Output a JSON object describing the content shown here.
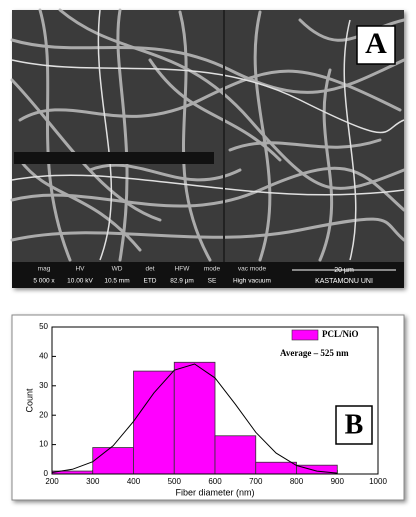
{
  "sem_panel": {
    "label": "A",
    "info_bar": [
      {
        "label": "mag",
        "value": "5 000 x"
      },
      {
        "label": "HV",
        "value": "10.00 kV"
      },
      {
        "label": "WD",
        "value": "10.5 mm"
      },
      {
        "label": "det",
        "value": "ETD"
      },
      {
        "label": "HFW",
        "value": "82.9 µm"
      },
      {
        "label": "mode",
        "value": "SE"
      },
      {
        "label": "vac mode",
        "value": "High vacuum"
      }
    ],
    "scale_bar": "20 µm",
    "institution": "KASTAMONU UNI"
  },
  "chart_data": {
    "type": "histogram",
    "panel_label": "B",
    "xlabel": "Fiber diameter (nm)",
    "ylabel": "Count",
    "bins": [
      200,
      300,
      400,
      500,
      600,
      700,
      800,
      900
    ],
    "series": [
      {
        "name": "PCL/NiO",
        "color": "#ff00ff",
        "values": [
          1,
          9,
          35,
          38,
          13,
          4,
          3
        ]
      }
    ],
    "annotation": "Average – 525 nm",
    "fit_curve": {
      "x": [
        200,
        250,
        300,
        350,
        400,
        450,
        500,
        550,
        600,
        650,
        700,
        750,
        800,
        850,
        900
      ],
      "values": [
        0.5,
        1.6,
        4.2,
        9.6,
        17.9,
        27.6,
        35.3,
        37.4,
        32.7,
        23.7,
        14.2,
        7.1,
        2.9,
        1.0,
        0.3
      ],
      "color": "#000000"
    },
    "xlim": [
      200,
      1000
    ],
    "xticks": [
      200,
      300,
      400,
      500,
      600,
      700,
      800,
      900,
      1000
    ],
    "ylim": [
      0,
      50
    ],
    "yticks": [
      0,
      10,
      20,
      30,
      40,
      50
    ]
  }
}
